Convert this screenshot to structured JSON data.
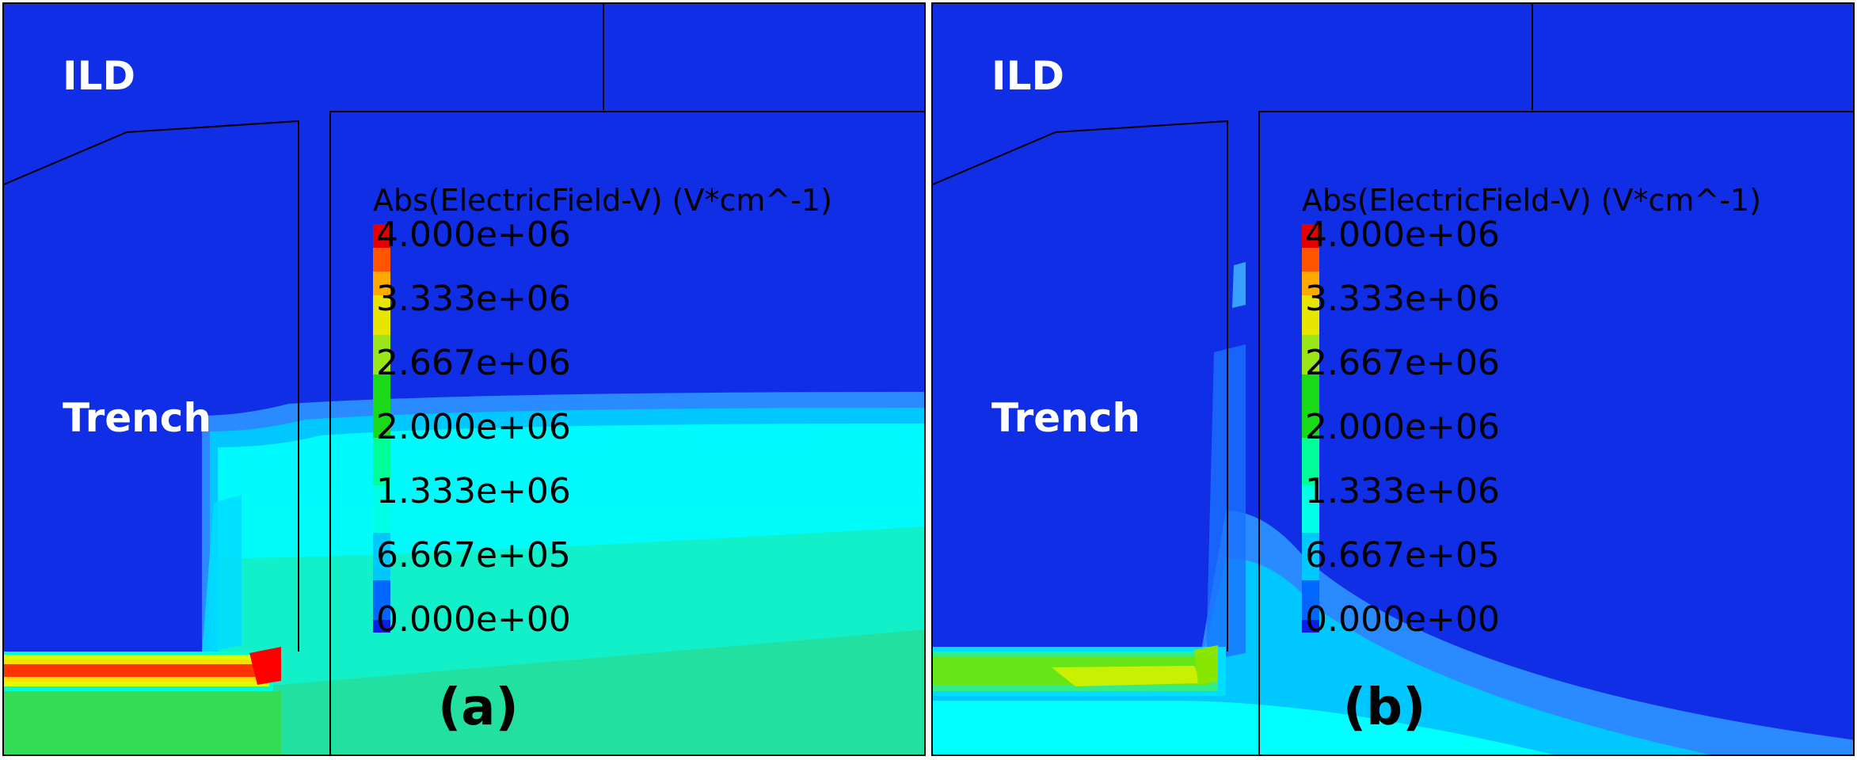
{
  "panels": [
    {
      "id": "a",
      "label": "(a)",
      "region_labels": {
        "ild": "ILD",
        "trench": "Trench"
      },
      "legend": {
        "title": "Abs(ElectricField-V) (V*cm^-1)",
        "ticks": [
          "4.000e+06",
          "3.333e+06",
          "2.667e+06",
          "2.000e+06",
          "1.333e+06",
          "6.667e+05",
          "0.000e+00"
        ]
      }
    },
    {
      "id": "b",
      "label": "(b)",
      "region_labels": {
        "ild": "ILD",
        "trench": "Trench"
      },
      "legend": {
        "title": "Abs(ElectricField-V) (V*cm^-1)",
        "ticks": [
          "4.000e+06",
          "3.333e+06",
          "2.667e+06",
          "2.000e+06",
          "1.333e+06",
          "6.667e+05",
          "0.000e+00"
        ]
      }
    }
  ],
  "colorscale": [
    "#0a1ee6",
    "#0066ff",
    "#00c8ff",
    "#00ffe6",
    "#19d919",
    "#66e619",
    "#e6e600",
    "#ffaa00",
    "#ff3300",
    "#e60000"
  ]
}
